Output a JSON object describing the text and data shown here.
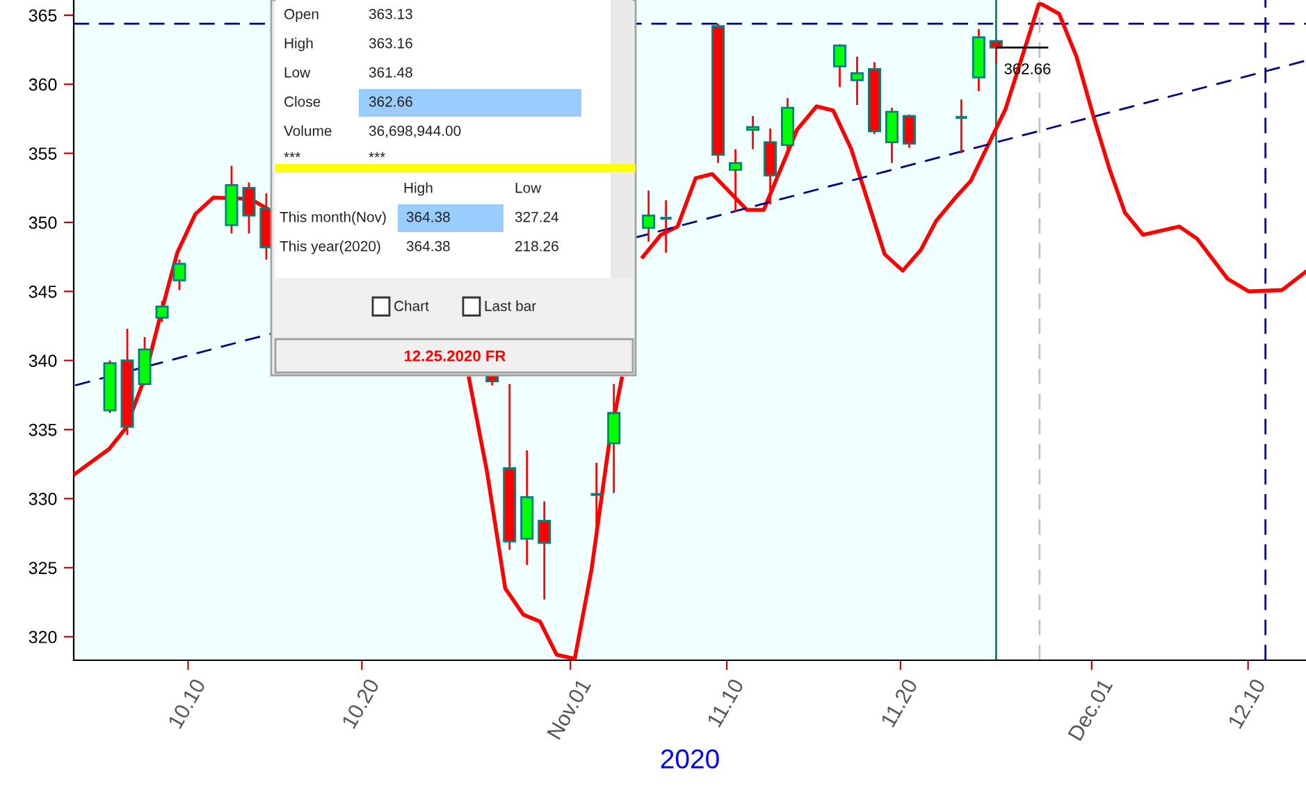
{
  "chart_data": {
    "type": "candlestick",
    "xlabel": "2020",
    "grid": false,
    "xlim": [
      "2020-10-03T10:00",
      "2020-12-13T08:00"
    ],
    "ylim": [
      318.3,
      366.1
    ],
    "xticks": [
      {
        "value": "2020-10-10",
        "label": "10.10"
      },
      {
        "value": "2020-10-20",
        "label": "10.20"
      },
      {
        "value": "2020-11-01",
        "label": "Nov.01"
      },
      {
        "value": "2020-11-10",
        "label": "11.10"
      },
      {
        "value": "2020-11-20",
        "label": "11.20"
      },
      {
        "value": "2020-12-01",
        "label": "Dec.01"
      },
      {
        "value": "2020-12-10",
        "label": "12.10"
      }
    ],
    "yticks": [
      320,
      325,
      330,
      335,
      340,
      345,
      350,
      355,
      360,
      365
    ],
    "series": [
      {
        "type": "line",
        "color": "#ff0000",
        "x": [
          "2020-10-03T12:00",
          "2020-10-05T11:00",
          "2020-10-06T10:00",
          "2020-10-07T11:00",
          "2020-10-08T10:00",
          "2020-10-09T09:00",
          "2020-10-10T10:00",
          "2020-10-11T11:00",
          "2020-10-13T14:00",
          "2020-10-14T13:00",
          null,
          "2020-10-26T04:00",
          "2020-10-27T05:00",
          "2020-10-28T06:00",
          "2020-10-29T07:00",
          "2020-10-30T06:00",
          "2020-10-31T05:00",
          "2020-11-01T06:00",
          "2020-11-02T05:00",
          "2020-11-03T06:00",
          "2020-11-03T23:00",
          null,
          "2020-11-05T04:00",
          "2020-11-06T05:00",
          "2020-11-07T04:00",
          "2020-11-08T05:00",
          "2020-11-09T04:00",
          "2020-11-11T04:00",
          "2020-11-12T03:00",
          "2020-11-14T01:00",
          "2020-11-15T04:00",
          "2020-11-16T03:00",
          "2020-11-17T04:00",
          "2020-11-19T02:00",
          "2020-11-20T03:00",
          "2020-11-21T04:00",
          "2020-11-22T01:00",
          "2020-11-23T04:00",
          "2020-11-24T01:00",
          "2020-11-26T01:00",
          "2020-11-27T23:00",
          "2020-11-28T03:00",
          "2020-11-29T03:00",
          "2020-11-30T03:00",
          "2020-12-01T04:00",
          "2020-12-02T01:00",
          "2020-12-02T22:00",
          "2020-12-03T23:00",
          "2020-12-06T01:00",
          "2020-12-07T02:00",
          "2020-12-08T20:00",
          "2020-12-10T01:00",
          "2020-12-11T23:00",
          "2020-12-13T07:00"
        ],
        "values": [
          331.8,
          333.6,
          335.1,
          338.6,
          343.3,
          347.8,
          350.6,
          351.8,
          351.7,
          351.0,
          null,
          338.7,
          331.9,
          323.5,
          321.6,
          321.1,
          318.7,
          318.4,
          324.8,
          334.2,
          338.7,
          null,
          347.5,
          349.1,
          349.7,
          353.2,
          353.5,
          350.9,
          350.9,
          356.7,
          358.4,
          358.1,
          355.3,
          347.7,
          346.5,
          348.0,
          350.1,
          351.8,
          353.0,
          358.2,
          365.8,
          365.8,
          365.1,
          362.0,
          357.4,
          353.8,
          350.7,
          349.1,
          349.7,
          348.8,
          345.9,
          345.0,
          345.1,
          346.4
        ]
      },
      {
        "type": "line",
        "color": "#000080",
        "line_style": "dashed",
        "x": [
          "2020-10-03T12:00",
          "2020-12-13T07:00"
        ],
        "values": [
          338.2,
          361.7
        ]
      },
      {
        "x": [
          "2020-10-05T12:00",
          "2020-10-06T12:00",
          "2020-10-07T12:00",
          "2020-10-08T12:00",
          "2020-10-09T12:00",
          "2020-10-12T12:00",
          "2020-10-13T12:00",
          "2020-10-14T12:00",
          "2020-10-27T12:00",
          "2020-10-28T12:00",
          "2020-10-29T12:00",
          "2020-10-30T12:00",
          "2020-11-02T12:00",
          "2020-11-03T12:00",
          "2020-11-05T12:00",
          "2020-11-06T12:00",
          "2020-11-09T12:00",
          "2020-11-10T12:00",
          "2020-11-11T12:00",
          "2020-11-12T12:00",
          "2020-11-13T12:00",
          "2020-11-16T12:00",
          "2020-11-17T12:00",
          "2020-11-18T12:00",
          "2020-11-19T12:00",
          "2020-11-20T12:00",
          "2020-11-23T12:00",
          "2020-11-24T12:00",
          "2020-11-25T12:00"
        ],
        "ohlc": [
          [
            336.4,
            340.0,
            336.2,
            339.8
          ],
          [
            340.0,
            342.3,
            334.6,
            335.2
          ],
          [
            338.3,
            341.7,
            338.2,
            340.8
          ],
          [
            343.1,
            344.3,
            342.8,
            343.9
          ],
          [
            345.8,
            347.3,
            345.1,
            347.0
          ],
          [
            349.8,
            354.1,
            349.2,
            352.7
          ],
          [
            352.5,
            352.9,
            349.2,
            350.5
          ],
          [
            351.0,
            352.1,
            347.3,
            348.2
          ],
          [
            338.9,
            338.9,
            338.2,
            338.5
          ],
          [
            332.2,
            338.3,
            326.3,
            326.9
          ],
          [
            327.1,
            333.5,
            325.2,
            330.1
          ],
          [
            328.4,
            329.8,
            322.7,
            326.8
          ],
          [
            330.3,
            332.6,
            327.3,
            330.3
          ],
          [
            334.0,
            338.3,
            330.4,
            336.2
          ],
          [
            349.6,
            352.3,
            348.6,
            350.5
          ],
          [
            350.3,
            351.6,
            347.8,
            350.3
          ],
          [
            364.2,
            364.4,
            354.3,
            354.9
          ],
          [
            353.8,
            355.3,
            350.8,
            354.3
          ],
          [
            356.7,
            357.7,
            355.3,
            356.9
          ],
          [
            355.8,
            356.8,
            351.3,
            353.4
          ],
          [
            355.6,
            359.0,
            354.8,
            358.3
          ],
          [
            361.3,
            362.9,
            359.8,
            362.8
          ],
          [
            360.3,
            362.0,
            358.5,
            360.8
          ],
          [
            361.1,
            361.6,
            356.4,
            356.6
          ],
          [
            355.8,
            358.3,
            354.3,
            358.0
          ],
          [
            357.7,
            357.8,
            355.4,
            355.7
          ],
          [
            357.6,
            358.9,
            355.0,
            357.6
          ],
          [
            360.5,
            364.0,
            359.5,
            363.4
          ],
          [
            363.13,
            363.16,
            361.48,
            362.66
          ]
        ],
        "colors": [
          "#00ff00",
          "#ff0000",
          "#00ff00",
          "#00ff00",
          "#00ff00",
          "#00ff00",
          "#ff0000",
          "#ff0000",
          "#ff0000",
          "#ff0000",
          "#00ff00",
          "#ff0000",
          "#008080",
          "#00ff00",
          "#00ff00",
          "#008080",
          "#ff0000",
          "#00ff00",
          "#00ff00",
          "#ff0000",
          "#00ff00",
          "#00ff00",
          "#00ff00",
          "#ff0000",
          "#00ff00",
          "#ff0000",
          "#008080",
          "#00ff00",
          "#ff0000"
        ]
      }
    ],
    "ref_lines": [
      {
        "axis": "y",
        "value": 364.38,
        "color": "#000080",
        "line_style": "dashed"
      },
      {
        "axis": "x",
        "value": "2020-11-25T12:00",
        "color": "#008080",
        "line_style": "solid"
      },
      {
        "axis": "x",
        "value": "2020-11-28",
        "color": "#c0c0c0",
        "line_style": "dashed"
      },
      {
        "axis": "x",
        "value": "2020-12-11",
        "color": "#000080",
        "line_style": "dashed"
      }
    ],
    "bands": [
      {
        "axis": "x",
        "from": "2020-10-03T10:00",
        "to": "2020-11-25T12:00",
        "color": "#f0ffff"
      }
    ],
    "annotations": [
      "Open",
      "363.13",
      "High",
      "363.16",
      "Low",
      "361.48",
      "Close",
      "362.66",
      "Volume",
      "36,698,944.00",
      "***",
      "***",
      "High",
      "Low",
      "This month(Nov)",
      "364.38",
      "327.24",
      "This year(2020)",
      "364.38",
      "218.26",
      "Chart",
      "Last bar",
      "12.25.2020 FR",
      {
        "text": "362.66",
        "x": "2020-11-25T12:00",
        "y": 362.66
      }
    ]
  }
}
